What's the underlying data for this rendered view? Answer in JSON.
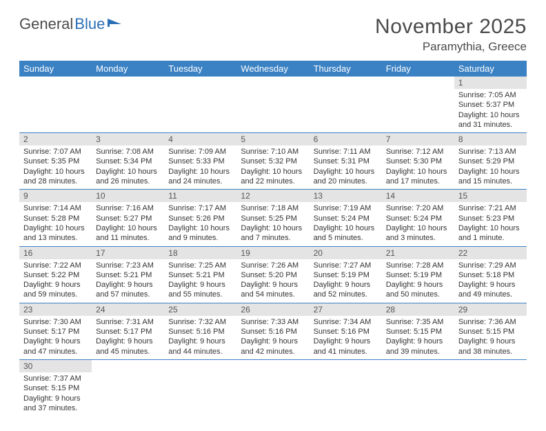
{
  "logo": {
    "part1": "General",
    "part2": "Blue"
  },
  "title": "November 2025",
  "location": "Paramythia, Greece",
  "colors": {
    "header_bg": "#3b82c4",
    "header_text": "#ffffff",
    "daynum_bg": "#e4e4e4",
    "border": "#3b82c4",
    "text": "#333333",
    "page_bg": "#ffffff"
  },
  "day_headers": [
    "Sunday",
    "Monday",
    "Tuesday",
    "Wednesday",
    "Thursday",
    "Friday",
    "Saturday"
  ],
  "weeks": [
    [
      null,
      null,
      null,
      null,
      null,
      null,
      {
        "n": "1",
        "sr": "Sunrise: 7:05 AM",
        "ss": "Sunset: 5:37 PM",
        "dl": "Daylight: 10 hours and 31 minutes."
      }
    ],
    [
      {
        "n": "2",
        "sr": "Sunrise: 7:07 AM",
        "ss": "Sunset: 5:35 PM",
        "dl": "Daylight: 10 hours and 28 minutes."
      },
      {
        "n": "3",
        "sr": "Sunrise: 7:08 AM",
        "ss": "Sunset: 5:34 PM",
        "dl": "Daylight: 10 hours and 26 minutes."
      },
      {
        "n": "4",
        "sr": "Sunrise: 7:09 AM",
        "ss": "Sunset: 5:33 PM",
        "dl": "Daylight: 10 hours and 24 minutes."
      },
      {
        "n": "5",
        "sr": "Sunrise: 7:10 AM",
        "ss": "Sunset: 5:32 PM",
        "dl": "Daylight: 10 hours and 22 minutes."
      },
      {
        "n": "6",
        "sr": "Sunrise: 7:11 AM",
        "ss": "Sunset: 5:31 PM",
        "dl": "Daylight: 10 hours and 20 minutes."
      },
      {
        "n": "7",
        "sr": "Sunrise: 7:12 AM",
        "ss": "Sunset: 5:30 PM",
        "dl": "Daylight: 10 hours and 17 minutes."
      },
      {
        "n": "8",
        "sr": "Sunrise: 7:13 AM",
        "ss": "Sunset: 5:29 PM",
        "dl": "Daylight: 10 hours and 15 minutes."
      }
    ],
    [
      {
        "n": "9",
        "sr": "Sunrise: 7:14 AM",
        "ss": "Sunset: 5:28 PM",
        "dl": "Daylight: 10 hours and 13 minutes."
      },
      {
        "n": "10",
        "sr": "Sunrise: 7:16 AM",
        "ss": "Sunset: 5:27 PM",
        "dl": "Daylight: 10 hours and 11 minutes."
      },
      {
        "n": "11",
        "sr": "Sunrise: 7:17 AM",
        "ss": "Sunset: 5:26 PM",
        "dl": "Daylight: 10 hours and 9 minutes."
      },
      {
        "n": "12",
        "sr": "Sunrise: 7:18 AM",
        "ss": "Sunset: 5:25 PM",
        "dl": "Daylight: 10 hours and 7 minutes."
      },
      {
        "n": "13",
        "sr": "Sunrise: 7:19 AM",
        "ss": "Sunset: 5:24 PM",
        "dl": "Daylight: 10 hours and 5 minutes."
      },
      {
        "n": "14",
        "sr": "Sunrise: 7:20 AM",
        "ss": "Sunset: 5:24 PM",
        "dl": "Daylight: 10 hours and 3 minutes."
      },
      {
        "n": "15",
        "sr": "Sunrise: 7:21 AM",
        "ss": "Sunset: 5:23 PM",
        "dl": "Daylight: 10 hours and 1 minute."
      }
    ],
    [
      {
        "n": "16",
        "sr": "Sunrise: 7:22 AM",
        "ss": "Sunset: 5:22 PM",
        "dl": "Daylight: 9 hours and 59 minutes."
      },
      {
        "n": "17",
        "sr": "Sunrise: 7:23 AM",
        "ss": "Sunset: 5:21 PM",
        "dl": "Daylight: 9 hours and 57 minutes."
      },
      {
        "n": "18",
        "sr": "Sunrise: 7:25 AM",
        "ss": "Sunset: 5:21 PM",
        "dl": "Daylight: 9 hours and 55 minutes."
      },
      {
        "n": "19",
        "sr": "Sunrise: 7:26 AM",
        "ss": "Sunset: 5:20 PM",
        "dl": "Daylight: 9 hours and 54 minutes."
      },
      {
        "n": "20",
        "sr": "Sunrise: 7:27 AM",
        "ss": "Sunset: 5:19 PM",
        "dl": "Daylight: 9 hours and 52 minutes."
      },
      {
        "n": "21",
        "sr": "Sunrise: 7:28 AM",
        "ss": "Sunset: 5:19 PM",
        "dl": "Daylight: 9 hours and 50 minutes."
      },
      {
        "n": "22",
        "sr": "Sunrise: 7:29 AM",
        "ss": "Sunset: 5:18 PM",
        "dl": "Daylight: 9 hours and 49 minutes."
      }
    ],
    [
      {
        "n": "23",
        "sr": "Sunrise: 7:30 AM",
        "ss": "Sunset: 5:17 PM",
        "dl": "Daylight: 9 hours and 47 minutes."
      },
      {
        "n": "24",
        "sr": "Sunrise: 7:31 AM",
        "ss": "Sunset: 5:17 PM",
        "dl": "Daylight: 9 hours and 45 minutes."
      },
      {
        "n": "25",
        "sr": "Sunrise: 7:32 AM",
        "ss": "Sunset: 5:16 PM",
        "dl": "Daylight: 9 hours and 44 minutes."
      },
      {
        "n": "26",
        "sr": "Sunrise: 7:33 AM",
        "ss": "Sunset: 5:16 PM",
        "dl": "Daylight: 9 hours and 42 minutes."
      },
      {
        "n": "27",
        "sr": "Sunrise: 7:34 AM",
        "ss": "Sunset: 5:16 PM",
        "dl": "Daylight: 9 hours and 41 minutes."
      },
      {
        "n": "28",
        "sr": "Sunrise: 7:35 AM",
        "ss": "Sunset: 5:15 PM",
        "dl": "Daylight: 9 hours and 39 minutes."
      },
      {
        "n": "29",
        "sr": "Sunrise: 7:36 AM",
        "ss": "Sunset: 5:15 PM",
        "dl": "Daylight: 9 hours and 38 minutes."
      }
    ],
    [
      {
        "n": "30",
        "sr": "Sunrise: 7:37 AM",
        "ss": "Sunset: 5:15 PM",
        "dl": "Daylight: 9 hours and 37 minutes."
      },
      null,
      null,
      null,
      null,
      null,
      null
    ]
  ]
}
